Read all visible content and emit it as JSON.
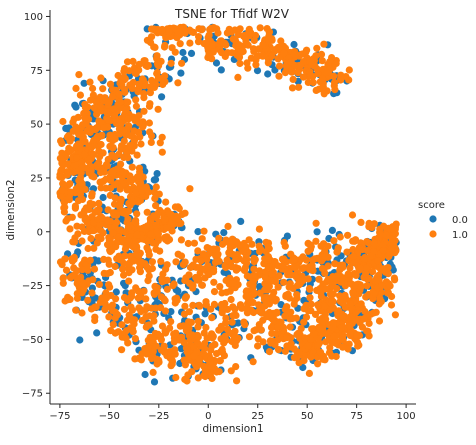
{
  "chart_data": {
    "type": "scatter",
    "title": "TSNE for Tfidf W2V",
    "xlabel": "dimension1",
    "ylabel": "dimension2",
    "xlim": [
      -80,
      105
    ],
    "ylim": [
      -80,
      103
    ],
    "xticks": [
      -75,
      -50,
      -25,
      0,
      25,
      50,
      75,
      100
    ],
    "yticks": [
      -75,
      -50,
      -25,
      0,
      25,
      50,
      75,
      100
    ],
    "xtick_labels": [
      "−75",
      "−50",
      "−25",
      "0",
      "25",
      "50",
      "75",
      "100"
    ],
    "ytick_labels": [
      "−75",
      "−50",
      "−25",
      "0",
      "25",
      "50",
      "75",
      "100"
    ],
    "grid": false,
    "legend": {
      "title": "score",
      "placement": "right",
      "entries": [
        "0.0",
        "1.0"
      ]
    },
    "colors": {
      "0.0": "#1f77b4",
      "1.0": "#ff7f0e"
    },
    "series": [
      {
        "name": "0.0",
        "approx_count": 700,
        "x": [
          -70,
          -62,
          -55,
          -48,
          -40,
          -35,
          -28,
          -20,
          -15,
          -30,
          -45,
          -58,
          -66,
          -72,
          -60,
          -52,
          -38,
          -25,
          -12,
          0,
          10,
          22,
          35,
          45,
          58,
          70,
          82,
          92,
          -5,
          -18,
          -42,
          -64,
          -56,
          -33,
          8,
          28,
          48,
          68,
          88,
          40,
          55,
          -22,
          -48,
          -60,
          -35,
          -10,
          5,
          18,
          30,
          62,
          78,
          95
        ],
        "y": [
          -20,
          -28,
          -35,
          -42,
          -48,
          -55,
          -60,
          -40,
          -30,
          -5,
          8,
          20,
          35,
          48,
          55,
          62,
          65,
          72,
          80,
          85,
          88,
          90,
          85,
          80,
          75,
          70,
          -5,
          -15,
          -60,
          -68,
          -25,
          -30,
          40,
          30,
          -48,
          -10,
          -40,
          -45,
          -30,
          -2,
          0,
          5,
          50,
          -15,
          0,
          -25,
          -35,
          -45,
          -55,
          -20,
          -10,
          -5
        ]
      },
      {
        "name": "1.0",
        "approx_count": 2300,
        "x": [],
        "y": []
      }
    ]
  }
}
